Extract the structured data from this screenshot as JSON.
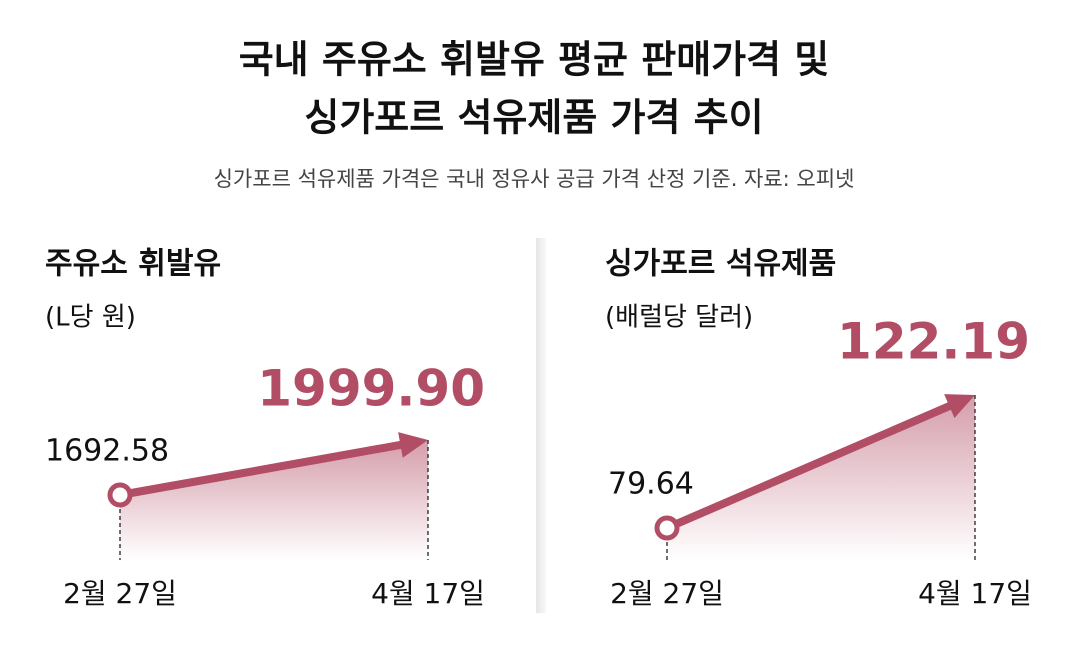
{
  "title": [
    "국내 주유소 휘발유 평균 판매가격 및",
    "싱가포르 석유제품 가격 추이"
  ],
  "subtitle": "싱가포르 석유제품 가격은 국내 정유사 공급 가격 산정 기준. 자료: 오피넷",
  "chart_data": [
    {
      "type": "line",
      "title": "주유소 휘발유",
      "subtitle": "(L당 원)",
      "categories": [
        "2월 27일",
        "4월 17일"
      ],
      "values": [
        1692.58,
        1999.9
      ],
      "value_labels": [
        "1692.58",
        "1999.90"
      ],
      "color": "#b24d66"
    },
    {
      "type": "line",
      "title": "싱가포르 석유제품",
      "subtitle": "(배럴당 달러)",
      "categories": [
        "2월 27일",
        "4월 17일"
      ],
      "values": [
        79.64,
        122.19
      ],
      "color": "#b24d66"
    }
  ]
}
